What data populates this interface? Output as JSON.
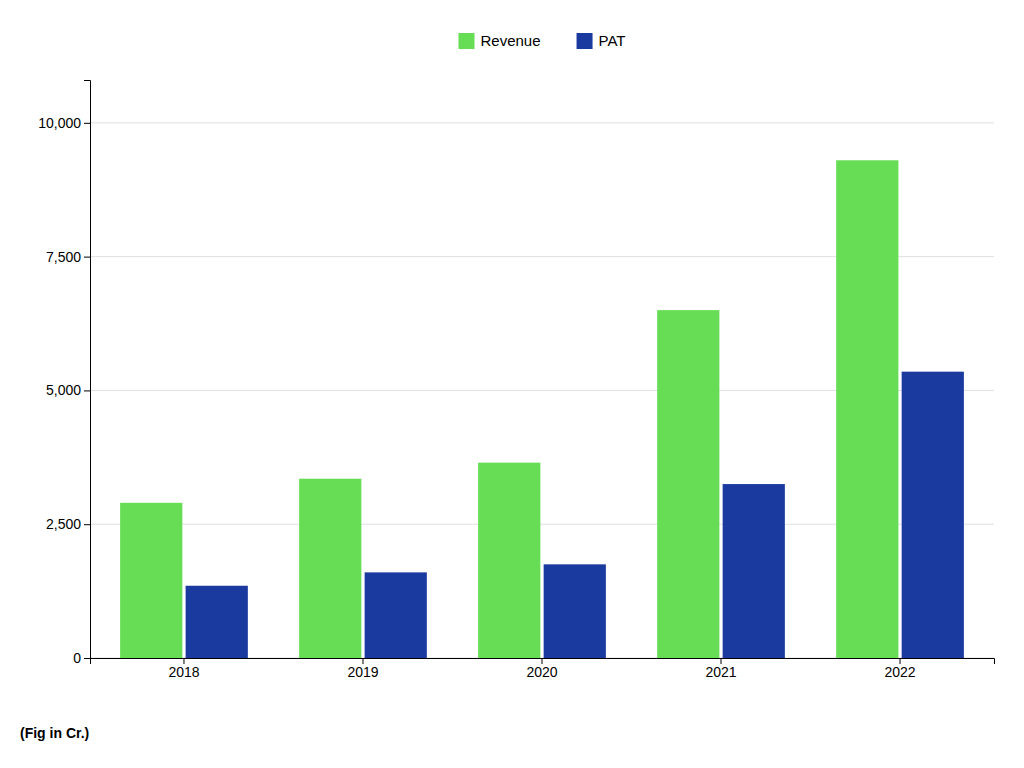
{
  "chart_data": {
    "type": "bar",
    "categories": [
      "2018",
      "2019",
      "2020",
      "2021",
      "2022"
    ],
    "series": [
      {
        "name": "Revenue",
        "color": "#66dd55",
        "values": [
          2900,
          3350,
          3650,
          6500,
          9300
        ]
      },
      {
        "name": "PAT",
        "color": "#1a3a9f",
        "values": [
          1350,
          1600,
          1750,
          3250,
          5350
        ]
      }
    ],
    "ylim": [
      0,
      10800
    ],
    "yticks": [
      0,
      {
        "value": 2500,
        "label": "2,500"
      },
      {
        "value": 5000,
        "label": "5,000"
      },
      {
        "value": 7500,
        "label": "7,500"
      },
      {
        "value": 10000,
        "label": "10,000"
      }
    ],
    "y_label": "(Fig in Cr.)",
    "grid": true,
    "legend": "top"
  }
}
